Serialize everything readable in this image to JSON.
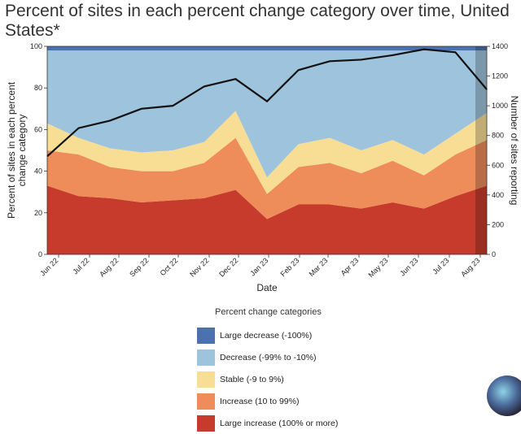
{
  "title": "Percent of sites in each percent change category over time, United States*",
  "chart_data": {
    "type": "area",
    "stacked": true,
    "xlabel": "Date",
    "ylabel_left": "Percent of sites in each percent change category",
    "ylabel_right": "Number of sites reporting",
    "ylim_left": [
      0,
      100
    ],
    "ylim_right": [
      0,
      1400
    ],
    "yticks_left": [
      "0",
      "20",
      "40",
      "60",
      "80",
      "100"
    ],
    "yticks_right": [
      "0",
      "200",
      "400",
      "600",
      "800",
      "1000",
      "1200",
      "1400"
    ],
    "xticks": [
      "Jun 22",
      "Jul 22",
      "Aug 22",
      "Sep 22",
      "Oct 22",
      "Nov 22",
      "Dec 22",
      "Jan 23",
      "Feb 23",
      "Mar 23",
      "Apr 23",
      "May 23",
      "Jun 23",
      "Jul 23",
      "Aug 23"
    ],
    "x": [
      "Jun 22",
      "Jul 22",
      "Aug 22",
      "Sep 22",
      "Oct 22",
      "Nov 22",
      "Dec 22",
      "Jan 23",
      "Feb 23",
      "Mar 23",
      "Apr 23",
      "May 23",
      "Jun 23",
      "Jul 23",
      "Aug 23"
    ],
    "series": [
      {
        "name": "Large increase (100% or more)",
        "color": "#c63b2b",
        "values": [
          33,
          28,
          27,
          25,
          26,
          27,
          31,
          17,
          24,
          24,
          22,
          25,
          22,
          28,
          33
        ]
      },
      {
        "name": "Increase (10 to 99%)",
        "color": "#ee8c5a",
        "values": [
          17,
          20,
          15,
          15,
          14,
          17,
          25,
          12,
          18,
          20,
          17,
          20,
          16,
          20,
          22
        ]
      },
      {
        "name": "Stable (-9 to 9%)",
        "color": "#f8de95",
        "values": [
          13,
          8,
          9,
          9,
          10,
          10,
          13,
          8,
          11,
          12,
          11,
          10,
          10,
          10,
          13
        ]
      },
      {
        "name": "Decrease (-99% to -10%)",
        "color": "#9ec3dc",
        "values": [
          35,
          42,
          47,
          49,
          48,
          44,
          29,
          61,
          45,
          42,
          48,
          43,
          50,
          40,
          30
        ]
      },
      {
        "name": "Large decrease (-100%)",
        "color": "#4a72b0",
        "values": [
          2,
          2,
          2,
          2,
          2,
          2,
          2,
          2,
          2,
          2,
          2,
          2,
          2,
          2,
          2
        ]
      }
    ],
    "sites_reporting": {
      "name": "Number of sites reporting",
      "color": "#111111",
      "values": [
        660,
        850,
        900,
        980,
        1000,
        1130,
        1180,
        1030,
        1240,
        1300,
        1310,
        1340,
        1380,
        1360,
        1110
      ]
    },
    "legend_title": "Percent change categories",
    "legend_position": "bottom"
  },
  "footer_icon": "assistant-orb-icon"
}
